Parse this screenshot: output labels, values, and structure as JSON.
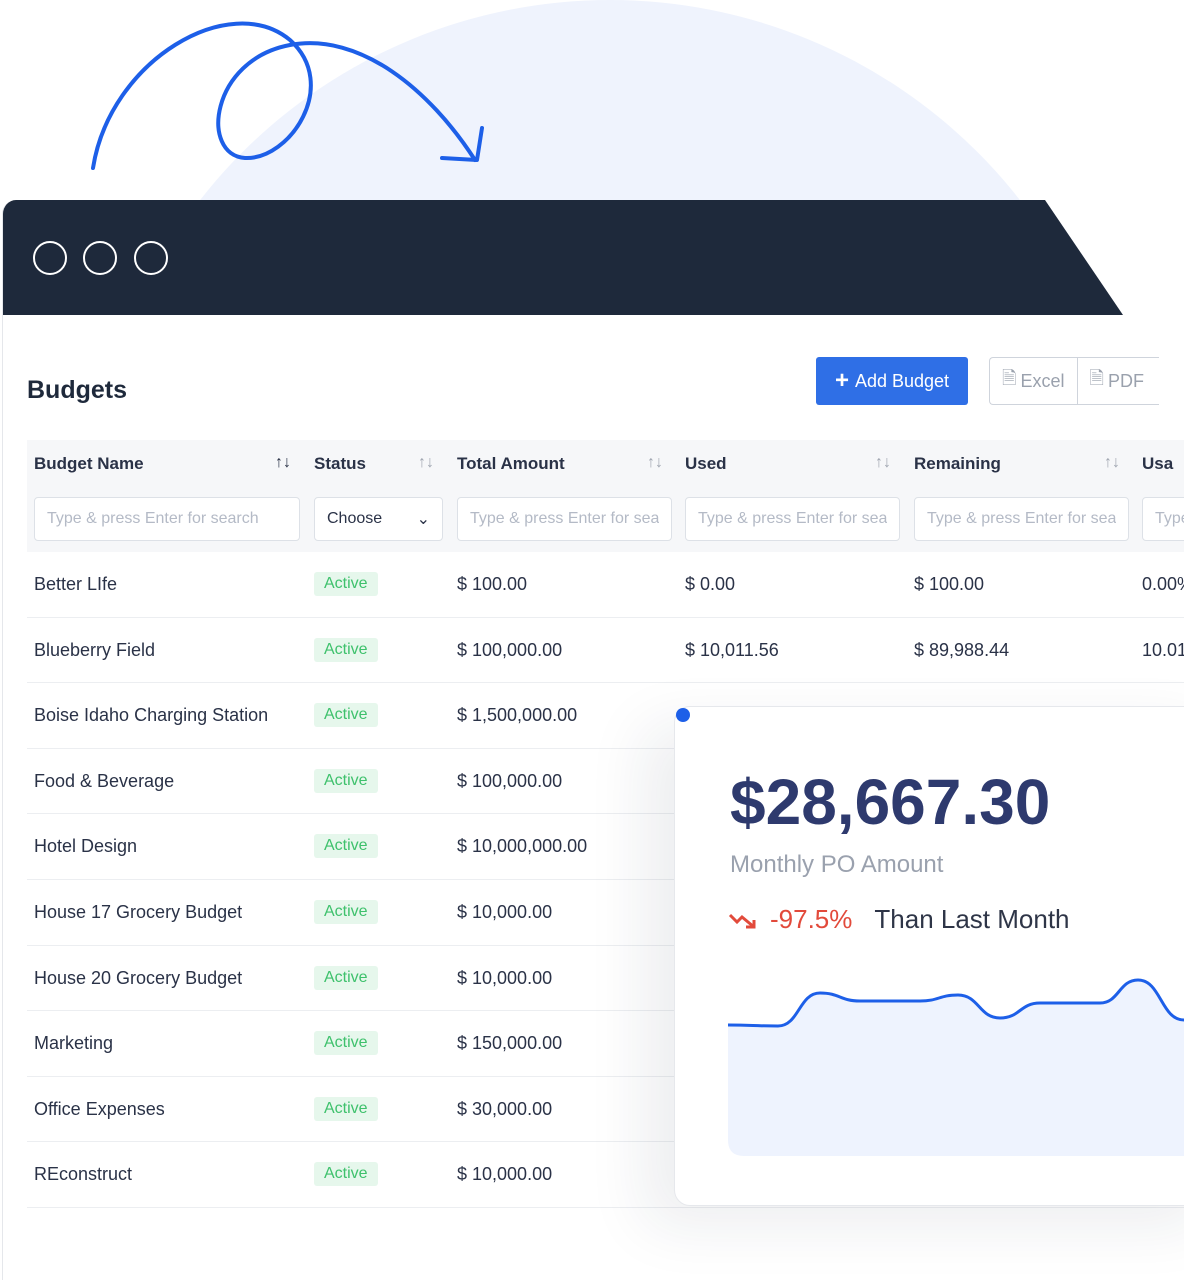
{
  "page": {
    "title": "Budgets",
    "add_button": "Add Budget",
    "excel_button": "Excel",
    "pdf_button": "PDF"
  },
  "table": {
    "columns": [
      {
        "label": "Budget Name",
        "filter_placeholder": "Type & press Enter for search"
      },
      {
        "label": "Status",
        "filter_value": "Choose"
      },
      {
        "label": "Total Amount",
        "filter_placeholder": "Type & press Enter for search"
      },
      {
        "label": "Used",
        "filter_placeholder": "Type & press Enter for search"
      },
      {
        "label": "Remaining",
        "filter_placeholder": "Type & press Enter for search"
      },
      {
        "label": "Usa",
        "filter_placeholder": "Type & press Enter for search"
      }
    ],
    "rows": [
      {
        "name": "Better LIfe",
        "status": "Active",
        "total": "$ 100.00",
        "used": "$ 0.00",
        "remaining": "$ 100.00",
        "usage": "0.00%"
      },
      {
        "name": "Blueberry Field",
        "status": "Active",
        "total": "$ 100,000.00",
        "used": "$ 10,011.56",
        "remaining": "$ 89,988.44",
        "usage": "10.01"
      },
      {
        "name": "Boise Idaho Charging Station",
        "status": "Active",
        "total": "$ 1,500,000.00"
      },
      {
        "name": "Food & Beverage",
        "status": "Active",
        "total": "$ 100,000.00"
      },
      {
        "name": "Hotel Design",
        "status": "Active",
        "total": "$ 10,000,000.00"
      },
      {
        "name": "House 17 Grocery Budget",
        "status": "Active",
        "total": "$ 10,000.00"
      },
      {
        "name": "House 20 Grocery Budget",
        "status": "Active",
        "total": "$ 10,000.00"
      },
      {
        "name": "Marketing",
        "status": "Active",
        "total": "$ 150,000.00"
      },
      {
        "name": "Office Expenses",
        "status": "Active",
        "total": "$ 30,000.00"
      },
      {
        "name": "REconstruct",
        "status": "Active",
        "total": "$ 10,000.00"
      }
    ]
  },
  "card": {
    "amount": "$28,667.30",
    "label": "Monthly PO Amount",
    "change": "-97.5%",
    "change_label": "Than Last Month",
    "trend_icon": "trend-down-icon"
  },
  "colors": {
    "accent": "#2f6fe6",
    "titlebar": "#1e293b",
    "active_badge": "#3ec16c",
    "negative": "#e24a3b",
    "amount": "#2e3a6e"
  },
  "chart_data": {
    "type": "area",
    "values": [
      75,
      74,
      107,
      99,
      99,
      105,
      82,
      97,
      97,
      120,
      80
    ],
    "grid": false,
    "line_color": "#1d5fe8",
    "fill_color": "#eef3fe"
  }
}
